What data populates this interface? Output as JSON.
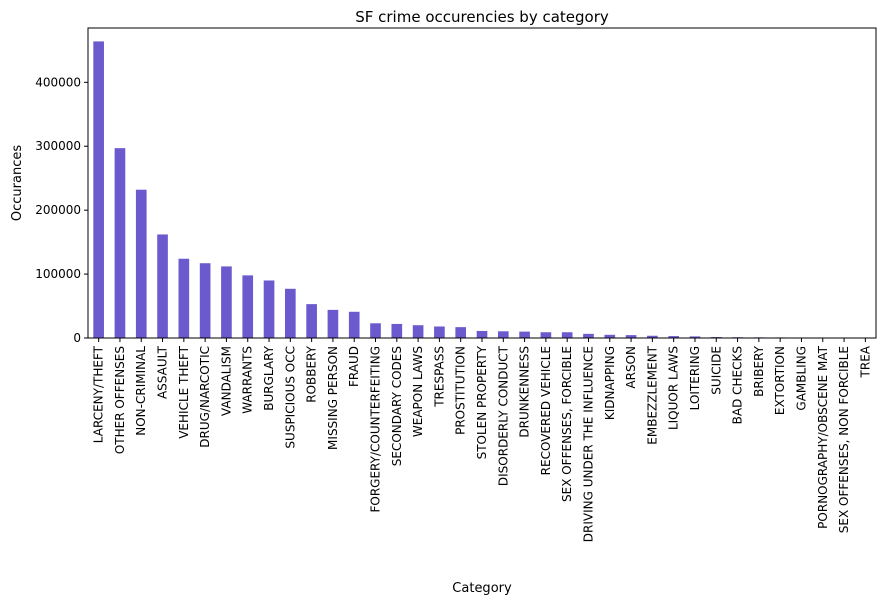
{
  "chart_data": {
    "type": "bar",
    "title": "SF crime occurencies by category",
    "xlabel": "Category",
    "ylabel": "Occurances",
    "ylim": [
      0,
      485000
    ],
    "yticks": [
      0,
      100000,
      200000,
      300000,
      400000
    ],
    "ytick_labels": [
      "0",
      "100000",
      "200000",
      "300000",
      "400000"
    ],
    "bar_color": "#6a5acd",
    "grid": false,
    "legend": "none",
    "categories": [
      "LARCENY/THEFT",
      "OTHER OFFENSES",
      "NON-CRIMINAL",
      "ASSAULT",
      "VEHICLE THEFT",
      "DRUG/NARCOTIC",
      "VANDALISM",
      "WARRANTS",
      "BURGLARY",
      "SUSPICIOUS OCC",
      "ROBBERY",
      "MISSING PERSON",
      "FRAUD",
      "FORGERY/COUNTERFEITING",
      "SECONDARY CODES",
      "WEAPON LAWS",
      "TRESPASS",
      "PROSTITUTION",
      "STOLEN PROPERTY",
      "DISORDERLY CONDUCT",
      "DRUNKENNESS",
      "RECOVERED VEHICLE",
      "SEX OFFENSES, FORCIBLE",
      "DRIVING UNDER THE INFLUENCE",
      "KIDNAPPING",
      "ARSON",
      "EMBEZZLEMENT",
      "LIQUOR LAWS",
      "LOITERING",
      "SUICIDE",
      "BAD CHECKS",
      "BRIBERY",
      "EXTORTION",
      "GAMBLING",
      "PORNOGRAPHY/OBSCENE MAT",
      "SEX OFFENSES, NON FORCIBLE",
      "TREA"
    ],
    "values": [
      464000,
      297000,
      232000,
      162000,
      124000,
      117000,
      112000,
      98000,
      90000,
      77000,
      53000,
      44000,
      41000,
      23000,
      22000,
      20000,
      18000,
      17000,
      11000,
      10500,
      10000,
      9000,
      9000,
      6500,
      5000,
      4500,
      3500,
      3000,
      2500,
      1500,
      1200,
      1000,
      900,
      700,
      200,
      100,
      50
    ]
  }
}
